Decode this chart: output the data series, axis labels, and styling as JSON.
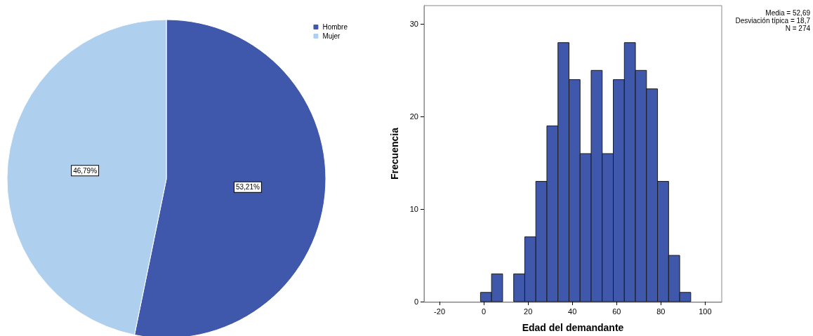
{
  "chart_data": [
    {
      "type": "pie",
      "categories": [
        "Hombre",
        "Mujer"
      ],
      "values": [
        53.21,
        46.79
      ],
      "colors": [
        "#3f58ab",
        "#aed0ee"
      ],
      "value_labels": [
        "53,21%",
        "46,79%"
      ],
      "legend": "top right"
    },
    {
      "type": "histogram",
      "xlabel": "Edad del demandante",
      "ylabel": "Frecuencia",
      "bins": [
        -1.5,
        3.5,
        8.5,
        13.5,
        18.5,
        23.5,
        28.5,
        33.5,
        38.5,
        43.5,
        48.5,
        53.5,
        58.5,
        63.5,
        68.5,
        73.5,
        78.5,
        83.5,
        88.5,
        93.5
      ],
      "values": [
        1,
        3,
        0,
        3,
        7,
        13,
        19,
        28,
        24,
        16,
        25,
        16,
        24,
        28,
        25,
        23,
        13,
        5,
        1
      ],
      "color": "#3f58ab",
      "xlim": [
        -27,
        107.5
      ],
      "ylim": [
        0,
        32
      ],
      "xticks": [
        -20,
        0,
        20,
        40,
        60,
        80,
        100
      ],
      "yticks": [
        0,
        10,
        20,
        30
      ],
      "annotations": [
        "Media = 52,69",
        "Desviación típica = 18,7",
        "N = 274"
      ],
      "grid": false
    }
  ]
}
